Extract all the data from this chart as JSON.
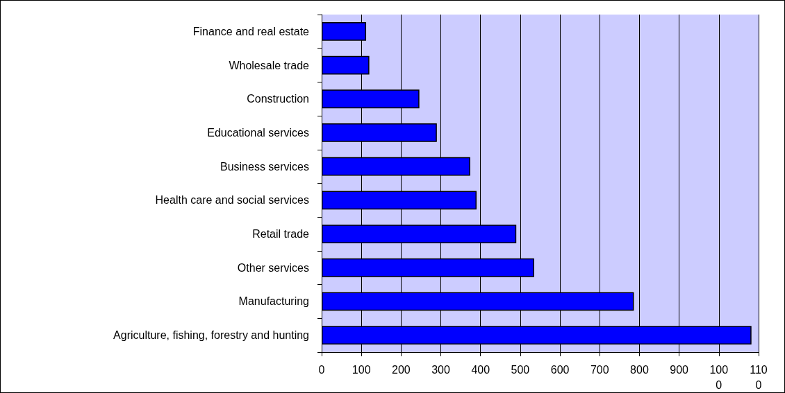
{
  "chart_data": {
    "type": "bar",
    "orientation": "horizontal",
    "categories": [
      "Finance and real estate",
      "Wholesale trade",
      "Construction",
      "Educational services",
      "Business services",
      "Health care and social services",
      "Retail trade",
      "Other services",
      "Manufacturing",
      "Agriculture, fishing, forestry and hunting"
    ],
    "values": [
      112,
      120,
      246,
      290,
      374,
      390,
      490,
      535,
      786,
      1082
    ],
    "color": "#0000ff",
    "xlim": [
      0,
      1100
    ],
    "xticks": [
      0,
      100,
      200,
      300,
      400,
      500,
      600,
      700,
      800,
      900,
      1000,
      1100
    ],
    "grid": "x"
  }
}
